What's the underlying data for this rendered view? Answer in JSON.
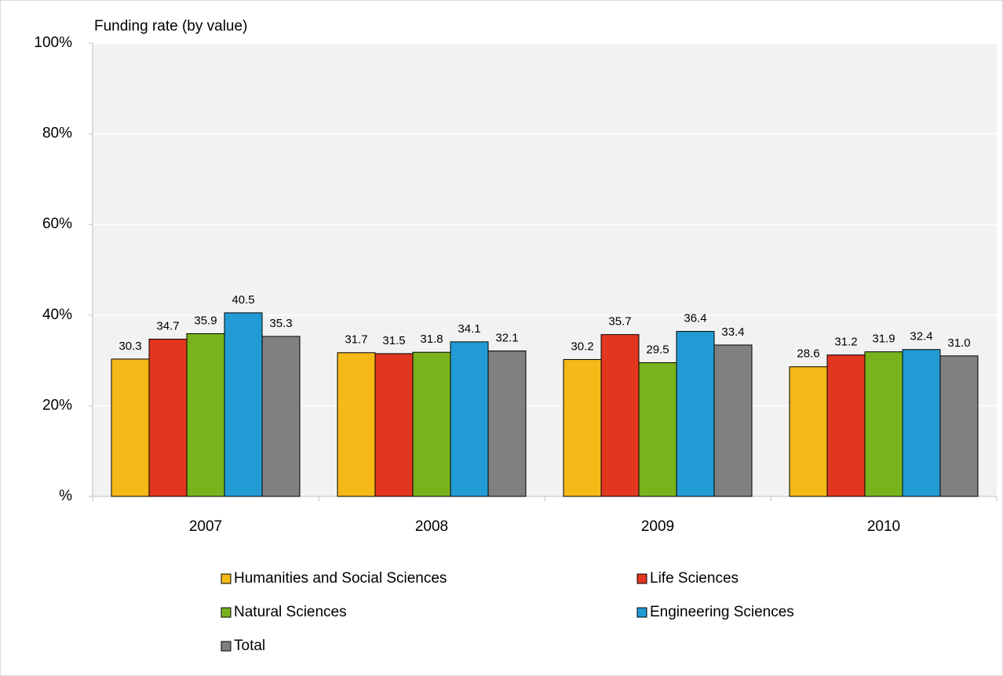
{
  "chart_data": {
    "type": "bar",
    "y_axis_label": "Funding rate (by value)",
    "categories": [
      "2007",
      "2008",
      "2009",
      "2010"
    ],
    "series": [
      {
        "name": "Humanities and Social Sciences",
        "color": "#f5b918",
        "values": [
          30.3,
          31.7,
          30.2,
          28.6
        ],
        "value_labels": [
          "30.3",
          "31.7",
          "30.2",
          "28.6"
        ]
      },
      {
        "name": "Life Sciences",
        "color": "#e2361e",
        "values": [
          34.7,
          31.5,
          35.7,
          31.2
        ],
        "value_labels": [
          "34.7",
          "31.5",
          "35.7",
          "31.2"
        ]
      },
      {
        "name": "Natural Sciences",
        "color": "#78b31e",
        "values": [
          35.9,
          31.8,
          29.5,
          31.9
        ],
        "value_labels": [
          "35.9",
          "31.8",
          "29.5",
          "31.9"
        ]
      },
      {
        "name": "Engineering Sciences",
        "color": "#229bd5",
        "values": [
          40.5,
          34.1,
          36.4,
          32.4
        ],
        "value_labels": [
          "40.5",
          "34.1",
          "36.4",
          "32.4"
        ]
      },
      {
        "name": "Total",
        "color": "#808080",
        "values": [
          35.3,
          32.1,
          33.4,
          31.0
        ],
        "value_labels": [
          "35.3",
          "32.1",
          "33.4",
          "31.0"
        ]
      }
    ],
    "ylim": [
      0,
      100
    ],
    "yticks": [
      {
        "value": 0,
        "label": "%"
      },
      {
        "value": 20,
        "label": "20%"
      },
      {
        "value": 40,
        "label": "40%"
      },
      {
        "value": 60,
        "label": "60%"
      },
      {
        "value": 80,
        "label": "80%"
      },
      {
        "value": 100,
        "label": "100%"
      }
    ],
    "grid": true
  }
}
